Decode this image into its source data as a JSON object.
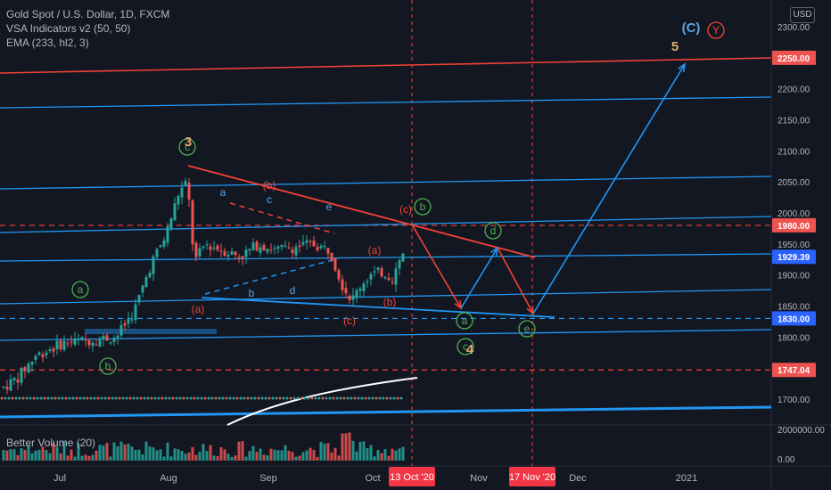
{
  "legend": {
    "symbol": "Gold Spot / U.S. Dollar, 1D, FXCM",
    "indicator1": "VSA Indicators v2 (50, 50)",
    "indicator2": "EMA (233, hl2, 3)"
  },
  "currency_badge": "USD",
  "volume_label": "Better Volume (20)",
  "chart_data": {
    "type": "candlestick",
    "title": "Gold Spot / U.S. Dollar, 1D, FXCM",
    "ylim": [
      1662,
      2330
    ],
    "y_ticks": [
      "2300.00",
      "2250.00",
      "2200.00",
      "2150.00",
      "2100.00",
      "2050.00",
      "2000.00",
      "1950.00",
      "1900.00",
      "1850.00",
      "1800.00",
      "1750.00",
      "1700.00"
    ],
    "x_ticks": [
      "Jul",
      "Aug",
      "Sep",
      "Oct",
      "Nov",
      "Dec",
      "2021"
    ],
    "x_highlight": [
      "13 Oct '20",
      "17 Nov '20"
    ],
    "volume_ticks": [
      "2000000.00",
      "0.00"
    ],
    "price_badges": [
      {
        "value": "2250.00",
        "color": "#ef5350"
      },
      {
        "value": "1980.00",
        "color": "#ef5350"
      },
      {
        "value": "1929.39",
        "color": "#2962ff"
      },
      {
        "value": "1830.00",
        "color": "#2962ff"
      },
      {
        "value": "1747.04",
        "color": "#ef5350"
      }
    ],
    "wave_labels": [
      {
        "text": "a",
        "style": "green-circle"
      },
      {
        "text": "b",
        "style": "green-circle"
      },
      {
        "text": "c",
        "style": "green-circle"
      },
      {
        "text": "3",
        "style": "orange"
      },
      {
        "text": "a",
        "style": "blue"
      },
      {
        "text": "b",
        "style": "blue"
      },
      {
        "text": "c",
        "style": "blue"
      },
      {
        "text": "d",
        "style": "blue"
      },
      {
        "text": "e",
        "style": "blue"
      },
      {
        "text": "(a)",
        "style": "red"
      },
      {
        "text": "(b)",
        "style": "red"
      },
      {
        "text": "(c)",
        "style": "red"
      },
      {
        "text": "(a)",
        "style": "red"
      },
      {
        "text": "(b)",
        "style": "red"
      },
      {
        "text": "(c)",
        "style": "red"
      },
      {
        "text": "b",
        "style": "green-circle"
      },
      {
        "text": "a",
        "style": "green-circle"
      },
      {
        "text": "c",
        "style": "green-circle"
      },
      {
        "text": "d",
        "style": "green-circle"
      },
      {
        "text": "e",
        "style": "green-circle"
      },
      {
        "text": "4",
        "style": "orange"
      },
      {
        "text": "5",
        "style": "orange"
      },
      {
        "text": "(C)",
        "style": "blue"
      },
      {
        "text": "Y",
        "style": "red-circle"
      }
    ],
    "colors": {
      "up": "#26a69a",
      "down": "#ef5350",
      "background": "#131722",
      "line_blue": "#2196f3",
      "line_red": "#f44336"
    }
  }
}
